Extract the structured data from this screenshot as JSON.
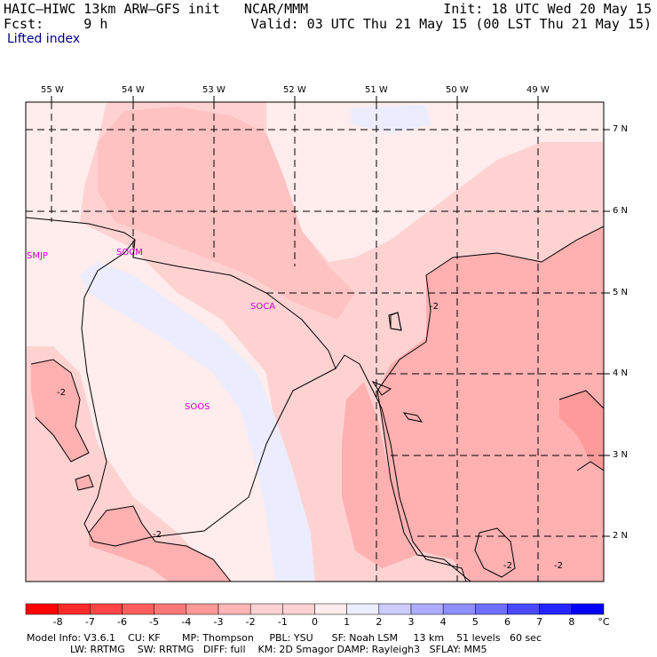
{
  "header": {
    "title_left": "HAIC–HIWC 13km ARW–GFS init   NCAR/MMM",
    "init": "Init: 18 UTC Wed 20 May 15",
    "fcst": "Fcst:     9 h",
    "valid": "Valid: 03 UTC Thu 21 May 15 (00 LST Thu 21 May 15)",
    "field": "Lifted index"
  },
  "axes": {
    "lon_labels": [
      "55 W",
      "54 W",
      "53 W",
      "52 W",
      "51 W",
      "50 W",
      "49 W"
    ],
    "lat_labels": [
      "7 N",
      "6 N",
      "5 N",
      "4 N",
      "3 N",
      "2 N"
    ]
  },
  "stations": [
    "SMJP",
    "SOCM",
    "SOCA",
    "SOOS"
  ],
  "contour_labels": [
    "-2",
    "-2",
    "-2",
    "-2",
    "-2",
    "-2"
  ],
  "colorbar": {
    "labels": [
      "-8",
      "-7",
      "-6",
      "-5",
      "-4",
      "-3",
      "-2",
      "-1",
      "0",
      "1",
      "2",
      "3",
      "4",
      "5",
      "6",
      "7",
      "8"
    ],
    "unit": "°C",
    "colors": [
      "#ff0000",
      "#ff2a2a",
      "#ff4545",
      "#ff5e5e",
      "#ff7878",
      "#ff9898",
      "#ffb6b6",
      "#ffd2d2",
      "#ffecec",
      "#ececff",
      "#ccccff",
      "#adadff",
      "#8e8eff",
      "#6f6fff",
      "#4a4aff",
      "#2525ff",
      "#0000ff"
    ]
  },
  "footer": {
    "line1": "Model Info: V3.6.1    CU: KF       MP: Thompson     PBL: YSU      SF: Noah LSM     13 km    51 levels   60 sec",
    "line2": "              LW: RRTMG    SW: RRTMG   DIFF: full    KM: 2D Smagor DAMP: Rayleigh3   SFLAY: MM5"
  }
}
